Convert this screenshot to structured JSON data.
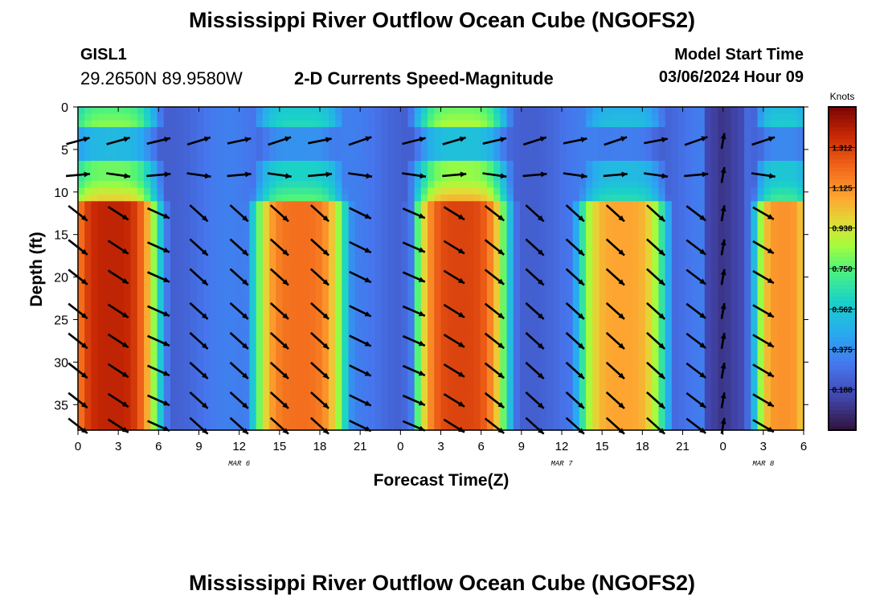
{
  "header": {
    "title": "Mississippi River Outflow Ocean Cube (NGOFS2)",
    "station": "GISL1",
    "coordinates": "29.2650N  89.9580W",
    "plot_title": "2-D Currents Speed-Magnitude",
    "model_start_label": "Model Start Time",
    "model_start_value": "03/06/2024 Hour 09"
  },
  "footer": {
    "title": "Mississippi River Outflow Ocean Cube (NGOFS2)"
  },
  "chart_data": {
    "type": "heatmap",
    "title": "2-D Currents Speed-Magnitude",
    "xlabel": "Forecast Time(Z)",
    "ylabel": "Depth (ft)",
    "x_range_hours": [
      0,
      54
    ],
    "y_range": [
      0,
      38
    ],
    "y_inverted": true,
    "x_ticks": [
      {
        "h": 0,
        "label": "0"
      },
      {
        "h": 3,
        "label": "3"
      },
      {
        "h": 6,
        "label": "6"
      },
      {
        "h": 9,
        "label": "9"
      },
      {
        "h": 12,
        "label": "12"
      },
      {
        "h": 15,
        "label": "15"
      },
      {
        "h": 18,
        "label": "18"
      },
      {
        "h": 21,
        "label": "21"
      },
      {
        "h": 24,
        "label": "0"
      },
      {
        "h": 27,
        "label": "3"
      },
      {
        "h": 30,
        "label": "6"
      },
      {
        "h": 33,
        "label": "9"
      },
      {
        "h": 36,
        "label": "12"
      },
      {
        "h": 39,
        "label": "15"
      },
      {
        "h": 42,
        "label": "18"
      },
      {
        "h": 45,
        "label": "21"
      },
      {
        "h": 48,
        "label": "0"
      },
      {
        "h": 51,
        "label": "3"
      },
      {
        "h": 54,
        "label": "6"
      }
    ],
    "y_ticks": [
      0,
      5,
      10,
      15,
      20,
      25,
      30,
      35
    ],
    "date_labels": [
      {
        "h": 12,
        "label": "MAR 6"
      },
      {
        "h": 36,
        "label": "MAR 7"
      },
      {
        "h": 51,
        "label": "MAR 8"
      }
    ],
    "colorbar": {
      "label": "Knots",
      "min": 0,
      "max": 1.5,
      "ticks": [
        "0.188",
        "0.375",
        "0.562",
        "0.750",
        "0.938",
        "1.125",
        "1.312"
      ]
    },
    "speed_hotspots": [
      {
        "center_h": 2.5,
        "half_width_h": 4.2,
        "deep_speed": 1.38,
        "surface_speed": 0.85
      },
      {
        "center_h": 16.5,
        "half_width_h": 4.2,
        "deep_speed": 1.2,
        "surface_speed": 0.65
      },
      {
        "center_h": 28.5,
        "half_width_h": 4.2,
        "deep_speed": 1.3,
        "surface_speed": 0.9
      },
      {
        "center_h": 40.5,
        "half_width_h": 4.0,
        "deep_speed": 1.08,
        "surface_speed": 0.55
      },
      {
        "center_h": 52.5,
        "half_width_h": 2.6,
        "deep_speed": 1.12,
        "surface_speed": 0.6
      }
    ],
    "vector_columns_hours": [
      0,
      3,
      6,
      9,
      12,
      15,
      18,
      21,
      25,
      28,
      31,
      34,
      37,
      40,
      43,
      46,
      48,
      51
    ]
  }
}
